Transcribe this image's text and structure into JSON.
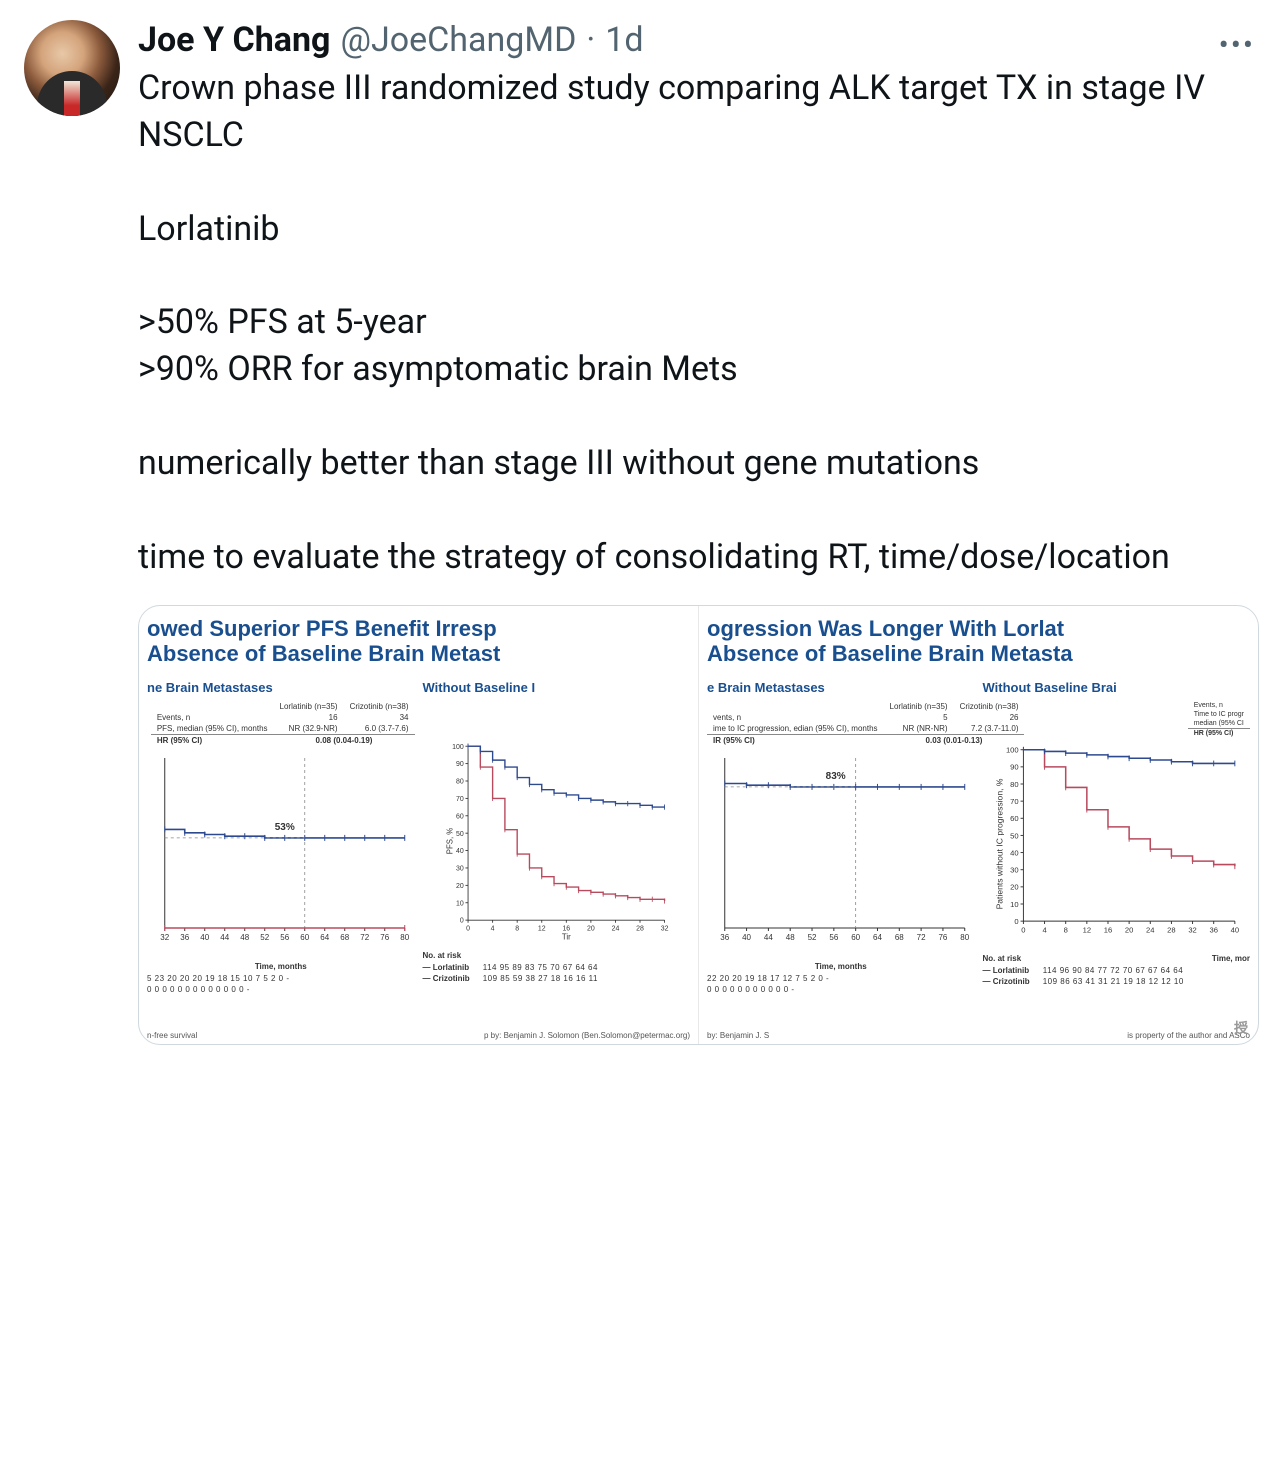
{
  "tweet": {
    "display_name": "Joe Y Chang",
    "handle": "@JoeChangMD",
    "sep": "·",
    "timestamp": "1d",
    "more_glyph": "•••",
    "body": "Crown phase III randomized study comparing ALK target TX in stage IV NSCLC\n\nLorlatinib\n\n>50% PFS at 5-year\n>90% ORR for asymptomatic brain Mets\n\nnumerically better than stage III without gene mutations\n\ntime to evaluate the strategy of consolidating RT, time/dose/location"
  },
  "colors": {
    "brand_blue": "#1a4f8f",
    "lorlatinib": "#2e4a8f",
    "crizotinib": "#b84a5e",
    "grid": "#888888",
    "handle": "#536471"
  },
  "slide1": {
    "title_l1": "owed Superior PFS Benefit Irresp",
    "title_l2": "Absence of Baseline Brain Metast",
    "panel_a_title": "ne Brain Metastases",
    "table_a": {
      "cols": [
        "",
        "Lorlatinib (n=35)",
        "Crizotinib (n=38)"
      ],
      "rows": [
        [
          "Events, n",
          "16",
          "34"
        ],
        [
          "PFS, median (95% CI), months",
          "NR (32.9-NR)",
          "6.0 (3.7-7.6)"
        ]
      ],
      "hr_label": "HR (95% CI)",
      "hr_value": "0.08 (0.04-0.19)"
    },
    "callout_a": "53%",
    "panel_b_title": "Without Baseline I",
    "km_a": {
      "type": "kaplan-meier",
      "xlim": [
        32,
        80
      ],
      "xtick_step": 4,
      "ylim": [
        0,
        100
      ],
      "lorlatinib": [
        [
          32,
          58
        ],
        [
          36,
          56
        ],
        [
          40,
          55
        ],
        [
          44,
          54
        ],
        [
          48,
          54
        ],
        [
          52,
          53
        ],
        [
          56,
          53
        ],
        [
          60,
          53
        ],
        [
          64,
          53
        ],
        [
          68,
          53
        ],
        [
          72,
          53
        ],
        [
          76,
          53
        ],
        [
          80,
          53
        ]
      ],
      "crizotinib": [
        [
          32,
          0
        ],
        [
          80,
          0
        ]
      ],
      "vline_at": 60
    },
    "km_b": {
      "type": "kaplan-meier",
      "xlim": [
        0,
        32
      ],
      "xtick_step": 4,
      "ylim": [
        0,
        100
      ],
      "ytick_step": 10,
      "lorlatinib": [
        [
          0,
          100
        ],
        [
          2,
          97
        ],
        [
          4,
          92
        ],
        [
          6,
          88
        ],
        [
          8,
          82
        ],
        [
          10,
          78
        ],
        [
          12,
          75
        ],
        [
          14,
          73
        ],
        [
          16,
          72
        ],
        [
          18,
          70
        ],
        [
          20,
          69
        ],
        [
          22,
          68
        ],
        [
          24,
          67
        ],
        [
          26,
          67
        ],
        [
          28,
          66
        ],
        [
          30,
          65
        ],
        [
          32,
          65
        ]
      ],
      "crizotinib": [
        [
          0,
          100
        ],
        [
          2,
          88
        ],
        [
          4,
          70
        ],
        [
          6,
          52
        ],
        [
          8,
          38
        ],
        [
          10,
          30
        ],
        [
          12,
          25
        ],
        [
          14,
          21
        ],
        [
          16,
          19
        ],
        [
          18,
          17
        ],
        [
          20,
          16
        ],
        [
          22,
          15
        ],
        [
          24,
          14
        ],
        [
          26,
          13
        ],
        [
          28,
          12
        ],
        [
          30,
          12
        ],
        [
          32,
          11
        ]
      ]
    },
    "risk_a": {
      "time_label": "Time, months",
      "rows": [
        [
          "",
          "5 23 20 20 20 19 18 15 10 7 5 2 0 -"
        ],
        [
          "",
          "0 0 0 0 0 0 0 0 0 0 0 0 0 -"
        ]
      ]
    },
    "risk_b": {
      "header": "No. at risk",
      "rows": [
        [
          "— Lorlatinib",
          "114 95 89 83 75 70 67 64 64"
        ],
        [
          "— Crizotinib",
          "109 85 59 38 27 18 16 16 11"
        ]
      ]
    },
    "footer_left": "n-free survival",
    "footer_right": "p by: Benjamin J. Solomon (Ben.Solomon@petermac.org)",
    "y_axis_b": "PFS, %"
  },
  "slide2": {
    "title_l1": "ogression Was Longer With Lorlat",
    "title_l2": "Absence of Baseline Brain Metasta",
    "panel_a_title": "e Brain Metastases",
    "table_a": {
      "cols": [
        "",
        "Lorlatinib (n=35)",
        "Crizotinib (n=38)"
      ],
      "rows": [
        [
          "vents, n",
          "5",
          "26"
        ],
        [
          "ime to IC progression, edian (95% CI), months",
          "NR (NR-NR)",
          "7.2 (3.7-11.0)"
        ]
      ],
      "hr_label": "IR (95% CI)",
      "hr_value": "0.03 (0.01-0.13)"
    },
    "callout_a": "83%",
    "panel_b_title": "Without Baseline Brai",
    "table_b": {
      "rows_head": [
        "Events, n",
        "Time to IC progr",
        "median (95% CI"
      ],
      "hr_label": "HR (95% CI)"
    },
    "km_a": {
      "type": "kaplan-meier",
      "xlim": [
        36,
        80
      ],
      "xtick_step": 4,
      "ylim": [
        0,
        100
      ],
      "lorlatinib": [
        [
          36,
          85
        ],
        [
          40,
          84
        ],
        [
          44,
          84
        ],
        [
          48,
          83
        ],
        [
          52,
          83
        ],
        [
          56,
          83
        ],
        [
          60,
          83
        ],
        [
          64,
          83
        ],
        [
          68,
          83
        ],
        [
          72,
          83
        ],
        [
          76,
          83
        ],
        [
          80,
          83
        ]
      ],
      "vline_at": 60
    },
    "km_b": {
      "type": "kaplan-meier",
      "xlim": [
        0,
        40
      ],
      "xtick_step": 4,
      "ylim": [
        0,
        100
      ],
      "ytick_step": 10,
      "lorlatinib": [
        [
          0,
          100
        ],
        [
          4,
          99
        ],
        [
          8,
          98
        ],
        [
          12,
          97
        ],
        [
          16,
          96
        ],
        [
          20,
          95
        ],
        [
          24,
          94
        ],
        [
          28,
          93
        ],
        [
          32,
          92
        ],
        [
          36,
          92
        ],
        [
          40,
          92
        ]
      ],
      "crizotinib": [
        [
          0,
          100
        ],
        [
          4,
          90
        ],
        [
          8,
          78
        ],
        [
          12,
          65
        ],
        [
          16,
          55
        ],
        [
          20,
          48
        ],
        [
          24,
          42
        ],
        [
          28,
          38
        ],
        [
          32,
          35
        ],
        [
          36,
          33
        ],
        [
          40,
          32
        ]
      ]
    },
    "risk_a": {
      "time_label": "Time, months",
      "rows": [
        [
          "",
          "22 20 20 19 18 17 12 7 5 2 0 -"
        ],
        [
          "",
          "0 0 0 0 0 0 0 0 0 0 0 -"
        ]
      ]
    },
    "risk_b": {
      "header": "No. at risk",
      "time_label": "Time, mor",
      "rows": [
        [
          "— Lorlatinib",
          "114 96 90 84 77 72 70 67 67 64 64"
        ],
        [
          "— Crizotinib",
          "109 86 63 41 31 21 19 18 12 12 10"
        ]
      ]
    },
    "footer_left": "by: Benjamin J. S",
    "footer_right": "is property of the author and ASCo",
    "y_axis_b": "Patients without IC progression, %"
  },
  "watermark": "授"
}
